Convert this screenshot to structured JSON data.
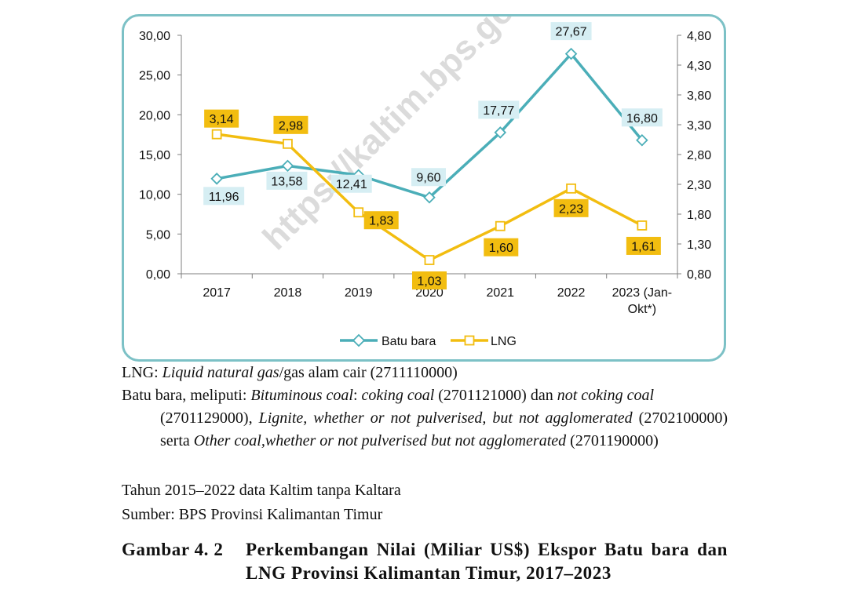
{
  "chart_data": {
    "type": "line",
    "categories": [
      "2017",
      "2018",
      "2019",
      "2020",
      "2021",
      "2022",
      "2023 (Jan-Okt*)"
    ],
    "category_lines": [
      [
        "2017"
      ],
      [
        "2018"
      ],
      [
        "2019"
      ],
      [
        "2020"
      ],
      [
        "2021"
      ],
      [
        "2022"
      ],
      [
        "2023 (Jan-",
        "Okt*)"
      ]
    ],
    "series": [
      {
        "name": "Batu bara",
        "axis": "left",
        "color": "#4baeb8",
        "marker": "diamond",
        "values": [
          11.96,
          13.58,
          12.41,
          9.6,
          17.77,
          27.67,
          16.8
        ],
        "labels": [
          "11,96",
          "13,58",
          "12,41",
          "9,60",
          "17,77",
          "27,67",
          "16,80"
        ],
        "label_color": "#d6eef3"
      },
      {
        "name": "LNG",
        "axis": "right",
        "color": "#f2bd10",
        "marker": "square",
        "values": [
          3.14,
          2.98,
          1.83,
          1.03,
          1.6,
          2.23,
          1.61
        ],
        "labels": [
          "3,14",
          "2,98",
          "1,83",
          "1,03",
          "1,60",
          "2,23",
          "1,61"
        ],
        "label_color": "#f2bd10"
      }
    ],
    "y_left": {
      "min": 0,
      "max": 30,
      "ticks": [
        "0,00",
        "5,00",
        "10,00",
        "15,00",
        "20,00",
        "25,00",
        "30,00"
      ]
    },
    "y_right": {
      "min": 0.8,
      "max": 4.8,
      "ticks": [
        "0,80",
        "1,30",
        "1,80",
        "2,30",
        "2,80",
        "3,30",
        "3,80",
        "4,30",
        "4,80"
      ]
    },
    "legend_position": "bottom",
    "grid": false,
    "watermark": "https://kaltim.bps.go.id"
  },
  "notes": {
    "lng_prefix": "LNG: ",
    "lng_italic": "Liquid natural gas",
    "lng_rest": "/gas alam cair (2711110000)",
    "coal_1": "Batu bara, meliputi: ",
    "coal_2": "Bituminous coal",
    "coal_3": ": ",
    "coal_4": "coking coal",
    "coal_5": " (2701121000) dan ",
    "coal_6": "not coking coal",
    "coal_7": "(2701129000), ",
    "coal_8": "Lignite, whether or not pulverised, but not agglomerated",
    "coal_9": "(2702100000) serta ",
    "coal_10": "Other coal,whether or not pulverised but not agglomerated",
    "coal_11": "(2701190000)",
    "years": "Tahun 2015–2022 data Kaltim tanpa Kaltara",
    "source": "Sumber: BPS Provinsi Kalimantan Timur"
  },
  "caption": {
    "number": "Gambar 4. 2",
    "text": "Perkembangan Nilai (Miliar US$) Ekspor Batu bara dan LNG Provinsi Kalimantan Timur, 2017–2023"
  }
}
